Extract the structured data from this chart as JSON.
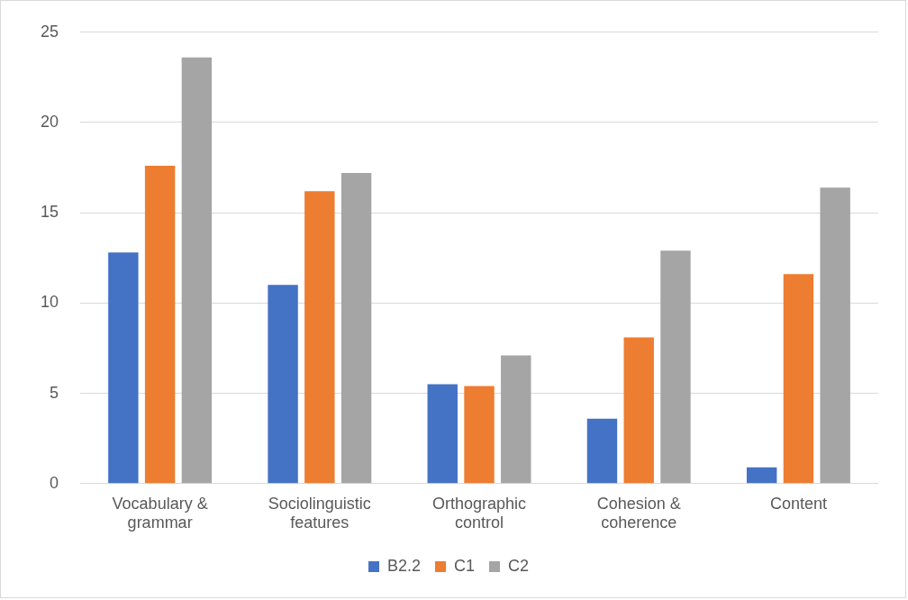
{
  "chart_data": {
    "type": "bar",
    "categories": [
      "Vocabulary & grammar",
      "Sociolinguistic features",
      "Orthographic control",
      "Cohesion & coherence",
      "Content"
    ],
    "series": [
      {
        "name": "B2.2",
        "color": "#4472c4",
        "values": [
          12.8,
          11.0,
          5.5,
          3.6,
          0.9
        ]
      },
      {
        "name": "C1",
        "color": "#ed7d31",
        "values": [
          17.6,
          16.2,
          5.4,
          8.1,
          11.6
        ]
      },
      {
        "name": "C2",
        "color": "#a5a5a5",
        "values": [
          23.6,
          17.2,
          7.1,
          12.9,
          16.4
        ]
      }
    ],
    "ylim": [
      0,
      25
    ],
    "yticks": [
      0,
      5,
      10,
      15,
      20,
      25
    ],
    "grid": "y",
    "legend": "bottom"
  }
}
